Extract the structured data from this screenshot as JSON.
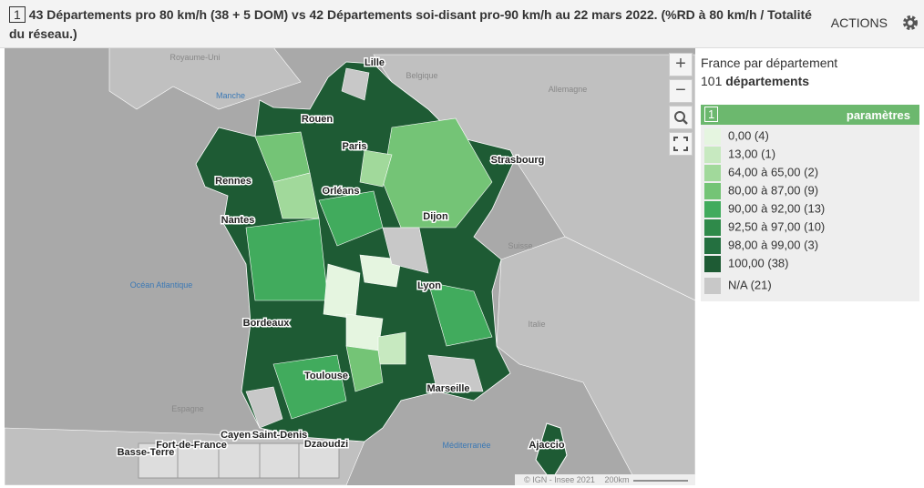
{
  "header": {
    "badge": "1",
    "title": "43 Départements pro 80 km/h (38 + 5 DOM) vs 42 Départements soi-disant pro-90 km/h au 22 mars 2022. (%RD à 80 km/h / Totalité du réseau.)",
    "actions": "ACTIONS"
  },
  "map": {
    "controls": [
      "+",
      "−"
    ],
    "countries": [
      "Royaume-Uni",
      "Belgique",
      "Allemagne",
      "Suisse",
      "Italie",
      "Espagne"
    ],
    "seas": [
      "Manche",
      "Océan Atlantique",
      "Méditerranée"
    ],
    "cities": [
      "Lille",
      "Rouen",
      "Paris",
      "Strasbourg",
      "Rennes",
      "Orléans",
      "Nantes",
      "Dijon",
      "Lyon",
      "Bordeaux",
      "Toulouse",
      "Marseille",
      "Ajaccio"
    ],
    "dom": [
      "Basse-Terre",
      "Fort-de-France",
      "Cayenne",
      "Saint-Denis",
      "Dzaoudzi"
    ],
    "attribution": "© IGN - Insee 2021",
    "scale": "200km"
  },
  "legend": {
    "title": "France par département",
    "count": "101",
    "count_unit": "départements",
    "badge": "1",
    "settings": "paramètres",
    "items": [
      {
        "label": "0,00 (4)",
        "color": "#e5f5e0"
      },
      {
        "label": "13,00 (1)",
        "color": "#c7e9c0"
      },
      {
        "label": "64,00 à 65,00 (2)",
        "color": "#a1d99b"
      },
      {
        "label": "80,00 à 87,00 (9)",
        "color": "#74c476"
      },
      {
        "label": "90,00 à 92,00 (13)",
        "color": "#41ab5d"
      },
      {
        "label": "92,50 à 97,00 (10)",
        "color": "#2f8a4a"
      },
      {
        "label": "98,00 à 99,00 (3)",
        "color": "#247040"
      },
      {
        "label": "100,00 (38)",
        "color": "#1e5b34"
      }
    ],
    "na": {
      "label": "N/A (21)",
      "color": "#c8c8c8"
    }
  }
}
